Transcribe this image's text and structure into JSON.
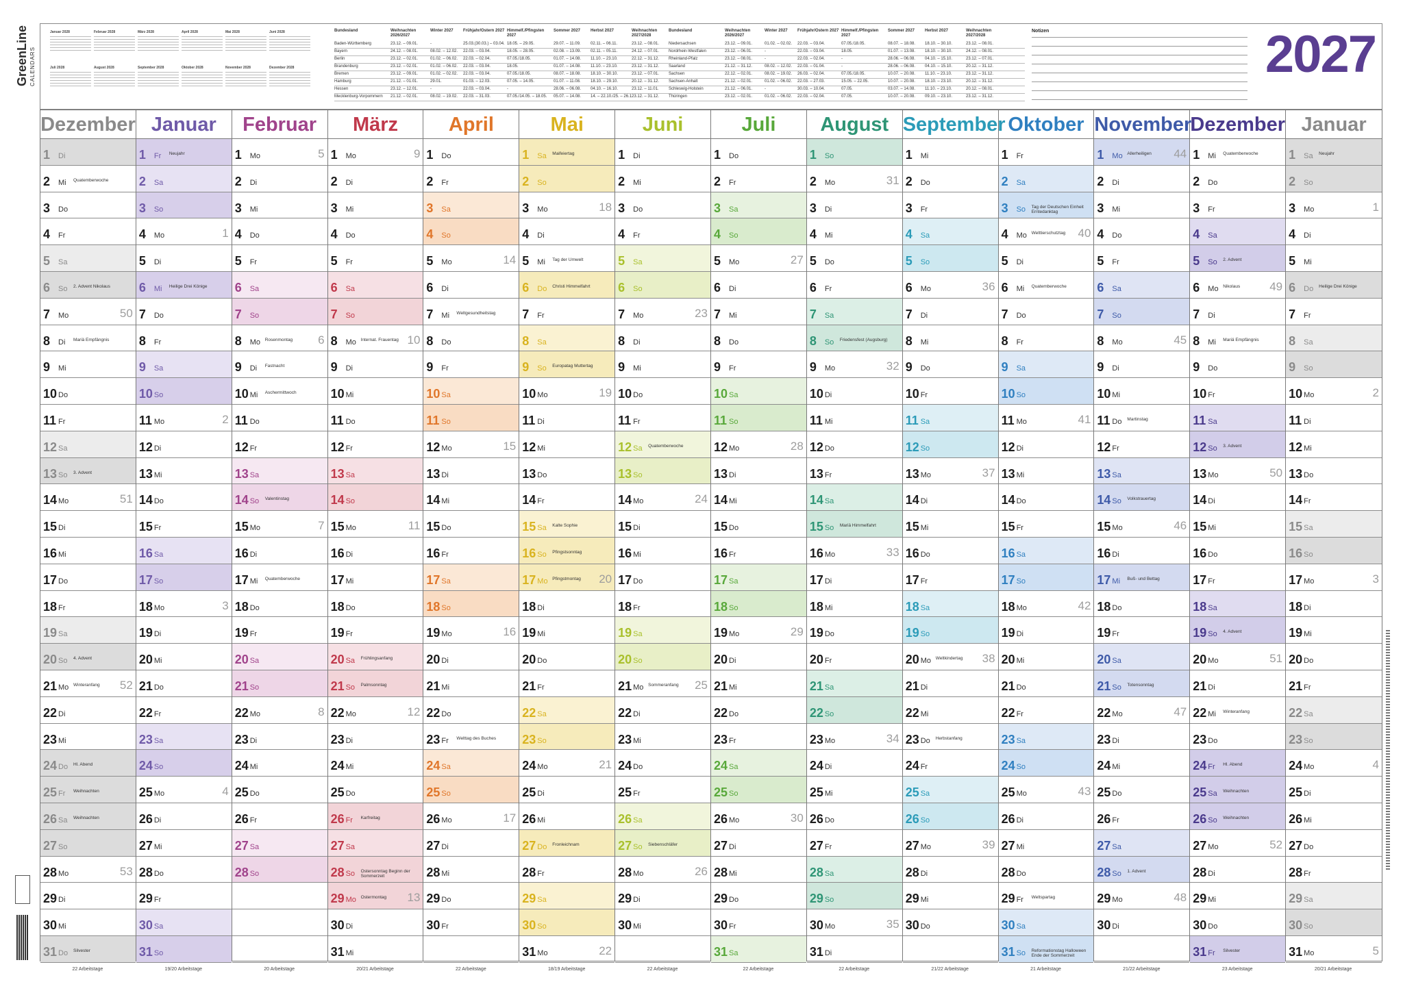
{
  "brand": {
    "name": "GreenLine",
    "sub": "CALENDARS"
  },
  "year": "2027",
  "notes_label": "Notizen",
  "mini_calendars": [
    {
      "title": "Januar 2028"
    },
    {
      "title": "Februar 2028"
    },
    {
      "title": "März 2028"
    },
    {
      "title": "April 2028"
    },
    {
      "title": "Mai 2028"
    },
    {
      "title": "Juni 2028"
    },
    {
      "title": "Juli 2028"
    },
    {
      "title": "August 2028"
    },
    {
      "title": "September 2028"
    },
    {
      "title": "Oktober 2028"
    },
    {
      "title": "November 2028"
    },
    {
      "title": "Dezember 2028"
    }
  ],
  "holiday_table_left": {
    "headers": [
      "Bundesland",
      "Weihnachten 2026/2027",
      "Winter 2027",
      "Frühjahr/Ostern 2027",
      "Himmelf./Pfingsten 2027",
      "Sommer 2027",
      "Herbst 2027",
      "Weihnachten 2027/2028"
    ],
    "rows": [
      [
        "Baden-Württemberg",
        "23.12. – 09.01.",
        "-",
        "25.03.(30.03.) – 03.04.",
        "18.05. – 29.05.",
        "29.07. – 11.09.",
        "02.11. – 06.11.",
        "23.12. – 08.01."
      ],
      [
        "Bayern",
        "24.12. – 08.01.",
        "08.02. – 12.02.",
        "22.03. – 03.04.",
        "18.05. – 28.05.",
        "02.08. – 13.09.",
        "02.11. – 05.11.",
        "24.12. – 07.01."
      ],
      [
        "Berlin",
        "23.12. – 02.01.",
        "01.02. – 06.02.",
        "22.03. – 02.04.",
        "07.05./18.05.",
        "01.07. – 14.08.",
        "11.10. – 23.10.",
        "22.12. – 31.12."
      ],
      [
        "Brandenburg",
        "23.12. – 02.01.",
        "01.02. – 06.02.",
        "22.03. – 03.04.",
        "18.05.",
        "01.07. – 14.08.",
        "11.10. – 23.10.",
        "23.12. – 31.12."
      ],
      [
        "Bremen",
        "23.12. – 09.01.",
        "01.02. – 02.02.",
        "22.03. – 03.04.",
        "07.05./18.05.",
        "08.07. – 18.08.",
        "18.10. – 30.10.",
        "23.12. – 07.01."
      ],
      [
        "Hamburg",
        "21.12. – 01.01.",
        "29.01.",
        "01.03. – 12.03.",
        "07.05. – 14.05.",
        "01.07. – 11.08.",
        "18.10. – 29.10.",
        "20.12. – 31.12."
      ],
      [
        "Hessen",
        "23.12. – 12.01.",
        "-",
        "22.03. – 03.04.",
        "-",
        "28.06. – 06.08.",
        "04.10. – 16.10.",
        "23.12. – 11.01."
      ],
      [
        "Mecklenburg-Vorpommern",
        "21.12. – 02.01.",
        "08.02. – 19.02.",
        "22.03. – 31.03.",
        "07.05./14.05. – 18.05.",
        "05.07. – 14.08.",
        "14. – 22.10./25. – 26.11.",
        "23.12. – 31.12."
      ]
    ]
  },
  "holiday_table_right": {
    "headers": [
      "Bundesland",
      "Weihnachten 2026/2027",
      "Winter 2027",
      "Frühjahr/Ostern 2027",
      "Himmelf./Pfingsten 2027",
      "Sommer 2027",
      "Herbst 2027",
      "Weihnachten 2027/2028"
    ],
    "rows": [
      [
        "Niedersachsen",
        "23.12. – 09.01.",
        "01.02. – 02.02.",
        "22.03. – 03.04.",
        "07.05./18.05.",
        "08.07. – 18.08.",
        "18.10. – 30.10.",
        "23.12. – 08.01."
      ],
      [
        "Nordrhein-Westfalen",
        "23.12. – 06.01.",
        "-",
        "22.03. – 03.04.",
        "18.05.",
        "01.07. – 13.08.",
        "18.10. – 30.10.",
        "24.12. – 08.01."
      ],
      [
        "Rheinland-Pfalz",
        "23.12. – 08.01.",
        "-",
        "22.03. – 02.04.",
        "-",
        "28.06. – 06.08.",
        "04.10. – 15.10.",
        "23.12. – 07.01."
      ],
      [
        "Saarland",
        "21.12. – 31.12.",
        "08.02. – 12.02.",
        "22.03. – 01.04.",
        "-",
        "28.06. – 06.08.",
        "04.10. – 15.10.",
        "20.12. – 31.12."
      ],
      [
        "Sachsen",
        "22.12. – 02.01.",
        "08.02. – 19.02.",
        "26.03. – 02.04.",
        "07.05./18.05.",
        "10.07. – 20.08.",
        "11.10. – 23.10.",
        "23.12. – 31.12."
      ],
      [
        "Sachsen-Anhalt",
        "21.12. – 02.01.",
        "01.02. – 06.02.",
        "22.03. – 27.03.",
        "15.05. – 22.05.",
        "10.07. – 20.08.",
        "18.10. – 23.10.",
        "20.12. – 31.12."
      ],
      [
        "Schleswig-Holstein",
        "21.12. – 06.01.",
        "-",
        "30.03. – 10.04.",
        "07.05.",
        "03.07. – 14.08.",
        "11.10. – 23.10.",
        "20.12. – 08.01."
      ],
      [
        "Thüringen",
        "23.12. – 02.01.",
        "01.02. – 06.02.",
        "22.03. – 02.04.",
        "07.05.",
        "10.07. – 20.08.",
        "09.10. – 23.10.",
        "23.12. – 31.12."
      ]
    ]
  },
  "colors": {
    "year": "#5a3e91",
    "weekend_grey": "#e6e6e6",
    "holiday_grey": "#ededed"
  },
  "months": [
    {
      "name": "Dezember",
      "color": "#8a8a8a",
      "wkcolor": "#dcdcdc",
      "hcolor": "#ececec",
      "startWd": 2,
      "days": 31,
      "footer": "22 Arbeitstage",
      "weeks": {
        "7": "50",
        "14": "51",
        "21": "52",
        "28": "53"
      },
      "holidays": {
        "2": "Quatemberwoche",
        "6": "2. Advent Nikolaus",
        "8": "Mariä Empfängnis",
        "13": "3. Advent",
        "20": "4. Advent",
        "21": "Winteranfang",
        "24": "Hl. Abend",
        "25": "Weihnachten",
        "26": "Weihnachten",
        "31": "Silvester"
      }
    },
    {
      "name": "Januar",
      "color": "#6f5aa8",
      "wkcolor": "#d7cfea",
      "hcolor": "#e7e2f3",
      "startWd": 5,
      "days": 31,
      "footer": "19/20 Arbeitstage",
      "weeks": {
        "4": "1",
        "11": "2",
        "18": "3",
        "25": "4"
      },
      "holidays": {
        "1": "Neujahr",
        "6": "Heilige Drei Könige"
      }
    },
    {
      "name": "Februar",
      "color": "#a0438b",
      "wkcolor": "#eed6e7",
      "hcolor": "#f6e8f2",
      "startWd": 1,
      "days": 28,
      "footer": "20 Arbeitstage",
      "weeks": {
        "1": "5",
        "8": "6",
        "15": "7",
        "22": "8"
      },
      "holidays": {
        "8": "Rosenmontag",
        "9": "Fastnacht",
        "10": "Aschermittwoch",
        "14": "Valentinstag",
        "17": "Quatemberwoche"
      }
    },
    {
      "name": "März",
      "color": "#c0394b",
      "wkcolor": "#f2d4d8",
      "hcolor": "#f6e0e4",
      "startWd": 1,
      "days": 31,
      "footer": "20/21 Arbeitstage",
      "weeks": {
        "1": "9",
        "8": "10",
        "15": "11",
        "22": "12",
        "29": "13"
      },
      "holidays": {
        "8": "Internat. Frauentag",
        "20": "Frühlingsanfang",
        "21": "Palmsonntag",
        "26": "Karfreitag",
        "28": "Ostersonntag Beginn der Sommerzeit",
        "29": "Ostermontag"
      }
    },
    {
      "name": "April",
      "color": "#e0762a",
      "wkcolor": "#f9dcc3",
      "hcolor": "#fbe8d6",
      "startWd": 4,
      "days": 30,
      "footer": "22 Arbeitstage",
      "weeks": {
        "5": "14",
        "12": "15",
        "19": "16",
        "26": "17"
      },
      "holidays": {
        "7": "Weltgesundheitstag",
        "23": "Welttag des Buches"
      }
    },
    {
      "name": "Mai",
      "color": "#d9b31f",
      "wkcolor": "#f6ebbb",
      "hcolor": "#faf2d2",
      "startWd": 6,
      "days": 31,
      "footer": "18/19 Arbeitstage",
      "weeks": {
        "3": "18",
        "10": "19",
        "17": "20",
        "24": "21",
        "31": "22"
      },
      "holidays": {
        "1": "Maifeiertag",
        "5": "Tag der Umwelt",
        "6": "Christi Himmelfahrt",
        "9": "Europatag Muttertag",
        "15": "Kalte Sophie",
        "16": "Pfingstsonntag",
        "17": "Pfingstmontag",
        "27": "Fronleichnam"
      }
    },
    {
      "name": "Juni",
      "color": "#a9c02c",
      "wkcolor": "#e8efc7",
      "hcolor": "#f1f5dc",
      "startWd": 2,
      "days": 30,
      "footer": "22 Arbeitstage",
      "weeks": {
        "7": "23",
        "14": "24",
        "21": "25",
        "28": "26"
      },
      "holidays": {
        "12": "Quatemberwoche",
        "21": "Sommeranfang",
        "27": "Siebenschläfer"
      }
    },
    {
      "name": "Juli",
      "color": "#58a83a",
      "wkcolor": "#d9ebcd",
      "hcolor": "#e7f2df",
      "startWd": 4,
      "days": 31,
      "footer": "22 Arbeitstage",
      "weeks": {
        "5": "27",
        "12": "28",
        "19": "29",
        "26": "30"
      },
      "holidays": {}
    },
    {
      "name": "August",
      "color": "#2e9575",
      "wkcolor": "#cfe7dc",
      "hcolor": "#dcefe6",
      "startWd": 0,
      "days": 31,
      "footer": "22 Arbeitstage",
      "weeks": {
        "2": "31",
        "9": "32",
        "16": "33",
        "23": "34",
        "30": "35"
      },
      "holidays": {
        "8": "Friedensfest (Augsburg)",
        "15": "Mariä Himmelfahrt"
      }
    },
    {
      "name": "September",
      "color": "#2b9bb8",
      "wkcolor": "#cde8f0",
      "hcolor": "#deeff5",
      "startWd": 3,
      "days": 30,
      "footer": "21/22 Arbeitstage",
      "weeks": {
        "6": "36",
        "13": "37",
        "20": "38",
        "27": "39"
      },
      "holidays": {
        "20": "Weltkindertag",
        "23": "Herbstanfang"
      }
    },
    {
      "name": "Oktober",
      "color": "#2f7fc0",
      "wkcolor": "#cfe0f3",
      "hcolor": "#dee9f6",
      "startWd": 5,
      "days": 31,
      "footer": "21 Arbeitstage",
      "weeks": {
        "4": "40",
        "11": "41",
        "18": "42",
        "25": "43"
      },
      "holidays": {
        "3": "Tag der Deutschen Einheit Erntedanktag",
        "4": "Welttierschutztag",
        "6": "Quatemberwoche",
        "29": "Weltspartag",
        "31": "Reformationstag Halloween Ende der Sommerzeit"
      }
    },
    {
      "name": "November",
      "color": "#3e5aa8",
      "wkcolor": "#d3daf0",
      "hcolor": "#dfe4f4",
      "startWd": 1,
      "days": 30,
      "footer": "21/22 Arbeitstage",
      "weeks": {
        "1": "44",
        "8": "45",
        "15": "46",
        "22": "47",
        "29": "48"
      },
      "holidays": {
        "1": "Allerheiligen",
        "11": "Martinstag",
        "14": "Volkstrauertag",
        "17": "Buß- und Bettag",
        "21": "Totensonntag",
        "28": "1. Advent"
      }
    },
    {
      "name": "Dezember",
      "color": "#4a3a8c",
      "wkcolor": "#d2cde9",
      "hcolor": "#e0dcf0",
      "startWd": 3,
      "days": 31,
      "footer": "23 Arbeitstage",
      "weeks": {
        "6": "49",
        "13": "50",
        "20": "51",
        "27": "52"
      },
      "holidays": {
        "1": "Quatemberwoche",
        "5": "2. Advent",
        "6": "Nikolaus",
        "8": "Mariä Empfängnis",
        "12": "3. Advent",
        "19": "4. Advent",
        "22": "Winteranfang",
        "24": "Hl. Abend",
        "25": "Weihnachten",
        "26": "Weihnachten",
        "31": "Silvester"
      }
    },
    {
      "name": "Januar",
      "color": "#8a8a8a",
      "wkcolor": "#dcdcdc",
      "hcolor": "#ececec",
      "startWd": 6,
      "days": 31,
      "footer": "20/21 Arbeitstage",
      "weeks": {
        "3": "1",
        "10": "2",
        "17": "3",
        "24": "4",
        "31": "5"
      },
      "holidays": {
        "1": "Neujahr",
        "6": "Heilige Drei Könige"
      }
    }
  ],
  "weekday_abbr": [
    "So",
    "Mo",
    "Di",
    "Mi",
    "Do",
    "Fr",
    "Sa"
  ],
  "legal_holidays": {
    "0": [
      1,
      24,
      25,
      26,
      31
    ],
    "1": [
      1,
      6
    ],
    "2": [],
    "3": [
      26,
      28,
      29
    ],
    "4": [],
    "5": [
      1,
      6,
      16,
      17,
      27
    ],
    "6": [],
    "7": [],
    "8": [
      8,
      15
    ],
    "9": [],
    "10": [
      3,
      31
    ],
    "11": [
      1,
      17
    ],
    "12": [
      24,
      25,
      26,
      31
    ],
    "13": [
      1,
      6
    ]
  }
}
